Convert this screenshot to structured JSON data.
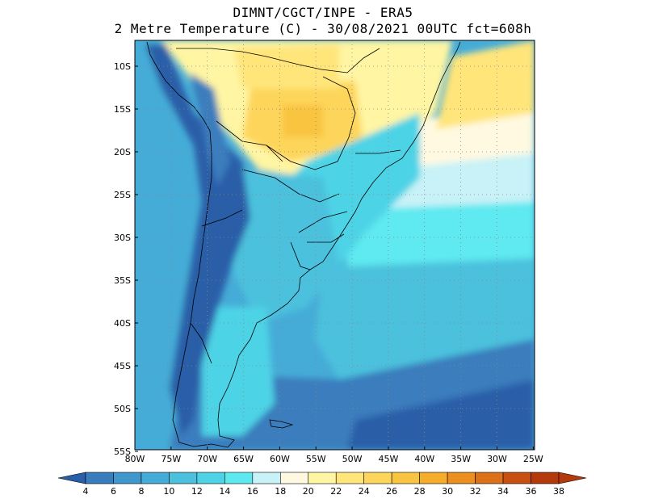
{
  "header": {
    "line1": "DIMNT/CGCT/INPE -  ERA5",
    "line2": "2 Metre Temperature (C) -  30/08/2021 00UTC fct=608h"
  },
  "map": {
    "variable": "2 Metre Temperature",
    "units": "C",
    "lon_range": [
      -80,
      -25
    ],
    "lat_range": [
      -55,
      -7
    ],
    "lat_labels": [
      "10S",
      "15S",
      "20S",
      "25S",
      "30S",
      "35S",
      "40S",
      "45S",
      "50S",
      "55S"
    ],
    "lon_labels": [
      "80W",
      "75W",
      "70W",
      "65W",
      "60W",
      "55W",
      "50W",
      "45W",
      "40W",
      "35W",
      "30W",
      "25W"
    ],
    "gridlines": "dotted"
  },
  "colorbar": {
    "labels": [
      "4",
      "6",
      "8",
      "10",
      "12",
      "14",
      "16",
      "18",
      "20",
      "22",
      "24",
      "26",
      "28",
      "30",
      "32",
      "34",
      "36",
      "38"
    ],
    "colors": [
      "#2b5ea8",
      "#3a7dbd",
      "#3f97cc",
      "#45acd7",
      "#4bc1dd",
      "#4ed3e6",
      "#5ee9f0",
      "#c8f2f7",
      "#fff9e1",
      "#fff5a3",
      "#ffe57a",
      "#fdd55a",
      "#f9c43f",
      "#f6ad2b",
      "#eb9020",
      "#dd711a",
      "#c85010",
      "#b43a0c"
    ]
  }
}
